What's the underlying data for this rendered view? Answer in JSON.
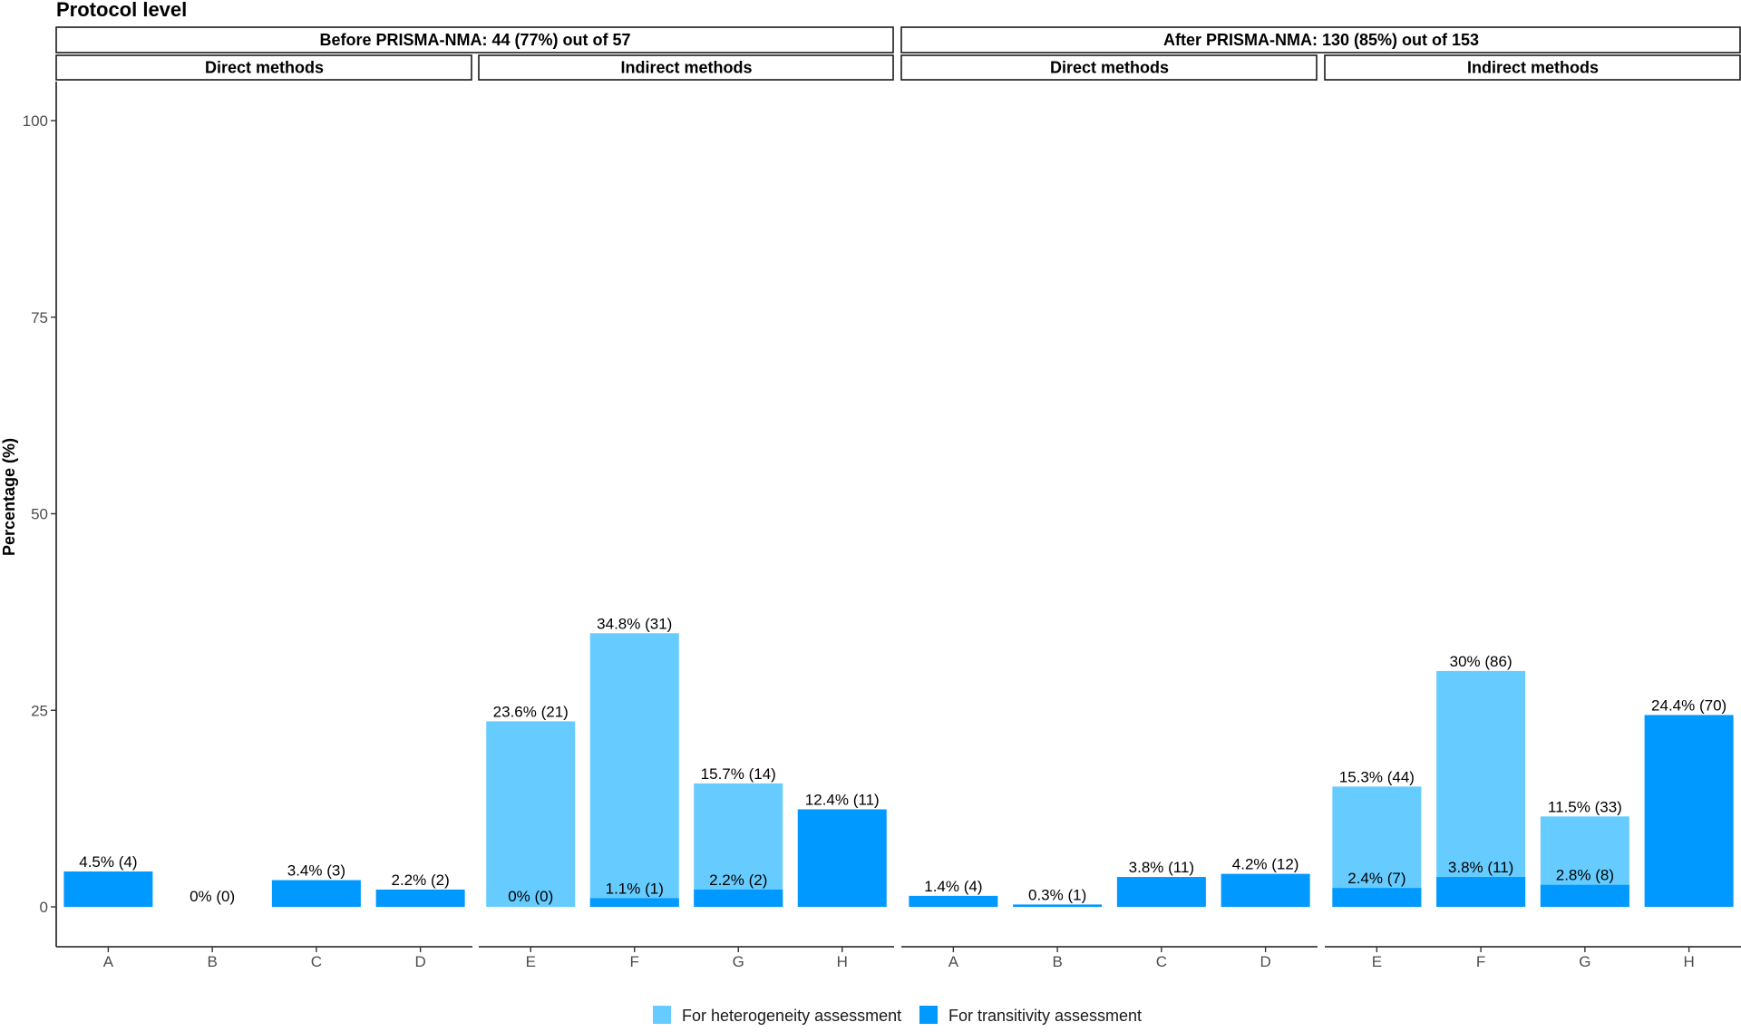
{
  "chart_data": {
    "type": "bar",
    "title": "Protocol level",
    "ylabel": "Percentage (%)",
    "ylim": [
      0,
      100
    ],
    "yticks": [
      0,
      25,
      50,
      75,
      100
    ],
    "grid": false,
    "legend": {
      "placement": "bottom",
      "entries": [
        {
          "name": "For heterogeneity assessment",
          "color": "#66ccff"
        },
        {
          "name": "For transitivity assessment",
          "color": "#0099ff"
        }
      ]
    },
    "colors": {
      "heterogeneity": "#66ccff",
      "transitivity": "#0099ff"
    },
    "groups": [
      {
        "label": "Before PRISMA-NMA: 44 (77%) out of 57",
        "panels": [
          {
            "label": "Direct methods",
            "bars": [
              {
                "category": "A",
                "heterogeneity": null,
                "transitivity": 4.5,
                "t_label": "4.5% (4)"
              },
              {
                "category": "B",
                "heterogeneity": null,
                "transitivity": 0,
                "t_label": "0% (0)"
              },
              {
                "category": "C",
                "heterogeneity": null,
                "transitivity": 3.4,
                "t_label": "3.4% (3)"
              },
              {
                "category": "D",
                "heterogeneity": null,
                "transitivity": 2.2,
                "t_label": "2.2% (2)"
              }
            ]
          },
          {
            "label": "Indirect methods",
            "bars": [
              {
                "category": "E",
                "heterogeneity": 23.6,
                "h_label": "23.6% (21)",
                "transitivity": 0,
                "t_label": "0% (0)"
              },
              {
                "category": "F",
                "heterogeneity": 34.8,
                "h_label": "34.8% (31)",
                "transitivity": 1.1,
                "t_label": "1.1% (1)"
              },
              {
                "category": "G",
                "heterogeneity": 15.7,
                "h_label": "15.7% (14)",
                "transitivity": 2.2,
                "t_label": "2.2% (2)"
              },
              {
                "category": "H",
                "heterogeneity": null,
                "transitivity": 12.4,
                "t_label": "12.4% (11)"
              }
            ]
          }
        ]
      },
      {
        "label": "After PRISMA-NMA: 130 (85%) out of 153",
        "panels": [
          {
            "label": "Direct methods",
            "bars": [
              {
                "category": "A",
                "heterogeneity": null,
                "transitivity": 1.4,
                "t_label": "1.4% (4)"
              },
              {
                "category": "B",
                "heterogeneity": null,
                "transitivity": 0.3,
                "t_label": "0.3% (1)"
              },
              {
                "category": "C",
                "heterogeneity": null,
                "transitivity": 3.8,
                "t_label": "3.8% (11)"
              },
              {
                "category": "D",
                "heterogeneity": null,
                "transitivity": 4.2,
                "t_label": "4.2% (12)"
              }
            ]
          },
          {
            "label": "Indirect methods",
            "bars": [
              {
                "category": "E",
                "heterogeneity": 15.3,
                "h_label": "15.3% (44)",
                "transitivity": 2.4,
                "t_label": "2.4% (7)"
              },
              {
                "category": "F",
                "heterogeneity": 30,
                "h_label": "30% (86)",
                "transitivity": 3.8,
                "t_label": "3.8% (11)"
              },
              {
                "category": "G",
                "heterogeneity": 11.5,
                "h_label": "11.5% (33)",
                "transitivity": 2.8,
                "t_label": "2.8% (8)"
              },
              {
                "category": "H",
                "heterogeneity": null,
                "transitivity": 24.4,
                "t_label": "24.4% (70)"
              }
            ]
          }
        ]
      }
    ]
  }
}
